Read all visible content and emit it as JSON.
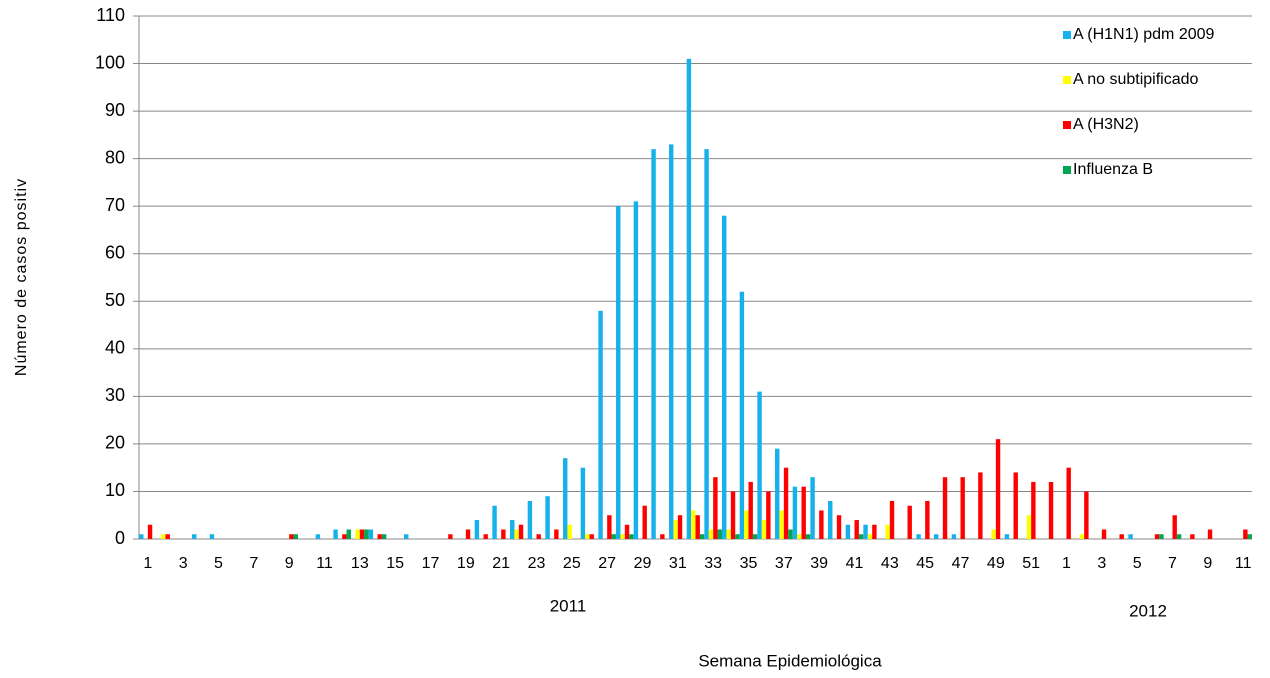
{
  "chart_data": {
    "type": "bar",
    "y_label": "Número de casos positiv",
    "x_label": "Semana Epidemiológica",
    "year_labels": [
      "2011",
      "2012"
    ],
    "categories": [
      "1",
      null,
      "3",
      null,
      "5",
      null,
      "7",
      null,
      "9",
      null,
      "11",
      null,
      "13",
      null,
      "15",
      null,
      "17",
      null,
      "19",
      null,
      "21",
      null,
      "23",
      null,
      "25",
      null,
      "27",
      null,
      "29",
      null,
      "31",
      null,
      "33",
      null,
      "35",
      null,
      "37",
      null,
      "39",
      null,
      "41",
      null,
      "43",
      null,
      "45",
      null,
      "47",
      null,
      "49",
      null,
      "51",
      null,
      "1",
      null,
      "3",
      null,
      "5",
      null,
      "7",
      null,
      "9",
      null,
      "11"
    ],
    "series": [
      {
        "name": "A (H1N1) pdm 2009",
        "color": "#16b0ea",
        "values": [
          1,
          0,
          0,
          1,
          1,
          0,
          0,
          0,
          0,
          0,
          1,
          2,
          0,
          2,
          0,
          1,
          0,
          0,
          0,
          4,
          7,
          4,
          8,
          9,
          17,
          15,
          48,
          70,
          71,
          82,
          83,
          101,
          82,
          68,
          52,
          31,
          19,
          11,
          13,
          8,
          3,
          3,
          0,
          0,
          1,
          1,
          1,
          0,
          0,
          1,
          0,
          0,
          0,
          0,
          0,
          0,
          1,
          0,
          0,
          0,
          0,
          0,
          0
        ]
      },
      {
        "name": "A no subtipificado",
        "color": "#ffff00",
        "values": [
          0,
          1,
          0,
          0,
          0,
          0,
          0,
          0,
          0,
          0,
          0,
          0,
          2,
          0,
          0,
          0,
          0,
          0,
          0,
          0,
          0,
          2,
          0,
          0,
          3,
          1,
          0,
          1,
          0,
          0,
          4,
          6,
          2,
          2,
          6,
          4,
          6,
          1,
          0,
          0,
          0,
          1,
          3,
          0,
          0,
          0,
          0,
          0,
          2,
          0,
          5,
          0,
          0,
          1,
          0,
          0,
          0,
          0,
          0,
          0,
          0,
          0,
          0
        ]
      },
      {
        "name": "A (H3N2)",
        "color": "#ff0000",
        "values": [
          3,
          1,
          0,
          0,
          0,
          0,
          0,
          0,
          1,
          0,
          0,
          1,
          2,
          1,
          0,
          0,
          0,
          1,
          2,
          1,
          2,
          3,
          1,
          2,
          0,
          1,
          5,
          3,
          7,
          1,
          5,
          5,
          13,
          10,
          12,
          10,
          15,
          11,
          6,
          5,
          4,
          3,
          8,
          7,
          8,
          13,
          13,
          14,
          21,
          14,
          12,
          12,
          15,
          10,
          2,
          1,
          0,
          1,
          5,
          1,
          2,
          0,
          2
        ]
      },
      {
        "name": "Influenza  B",
        "color": "#00a651",
        "values": [
          0,
          0,
          0,
          0,
          0,
          0,
          0,
          0,
          1,
          0,
          0,
          2,
          2,
          1,
          0,
          0,
          0,
          0,
          0,
          0,
          0,
          0,
          0,
          0,
          0,
          0,
          1,
          1,
          0,
          0,
          0,
          1,
          2,
          1,
          1,
          0,
          2,
          1,
          0,
          0,
          1,
          0,
          0,
          0,
          0,
          0,
          0,
          0,
          0,
          0,
          0,
          0,
          0,
          0,
          0,
          0,
          0,
          1,
          1,
          0,
          0,
          0,
          1
        ]
      }
    ],
    "ylim": [
      0,
      110
    ],
    "yticks": [
      0,
      10,
      20,
      30,
      40,
      50,
      60,
      70,
      80,
      90,
      100,
      110
    ],
    "grid": true,
    "legend": "top-right"
  }
}
